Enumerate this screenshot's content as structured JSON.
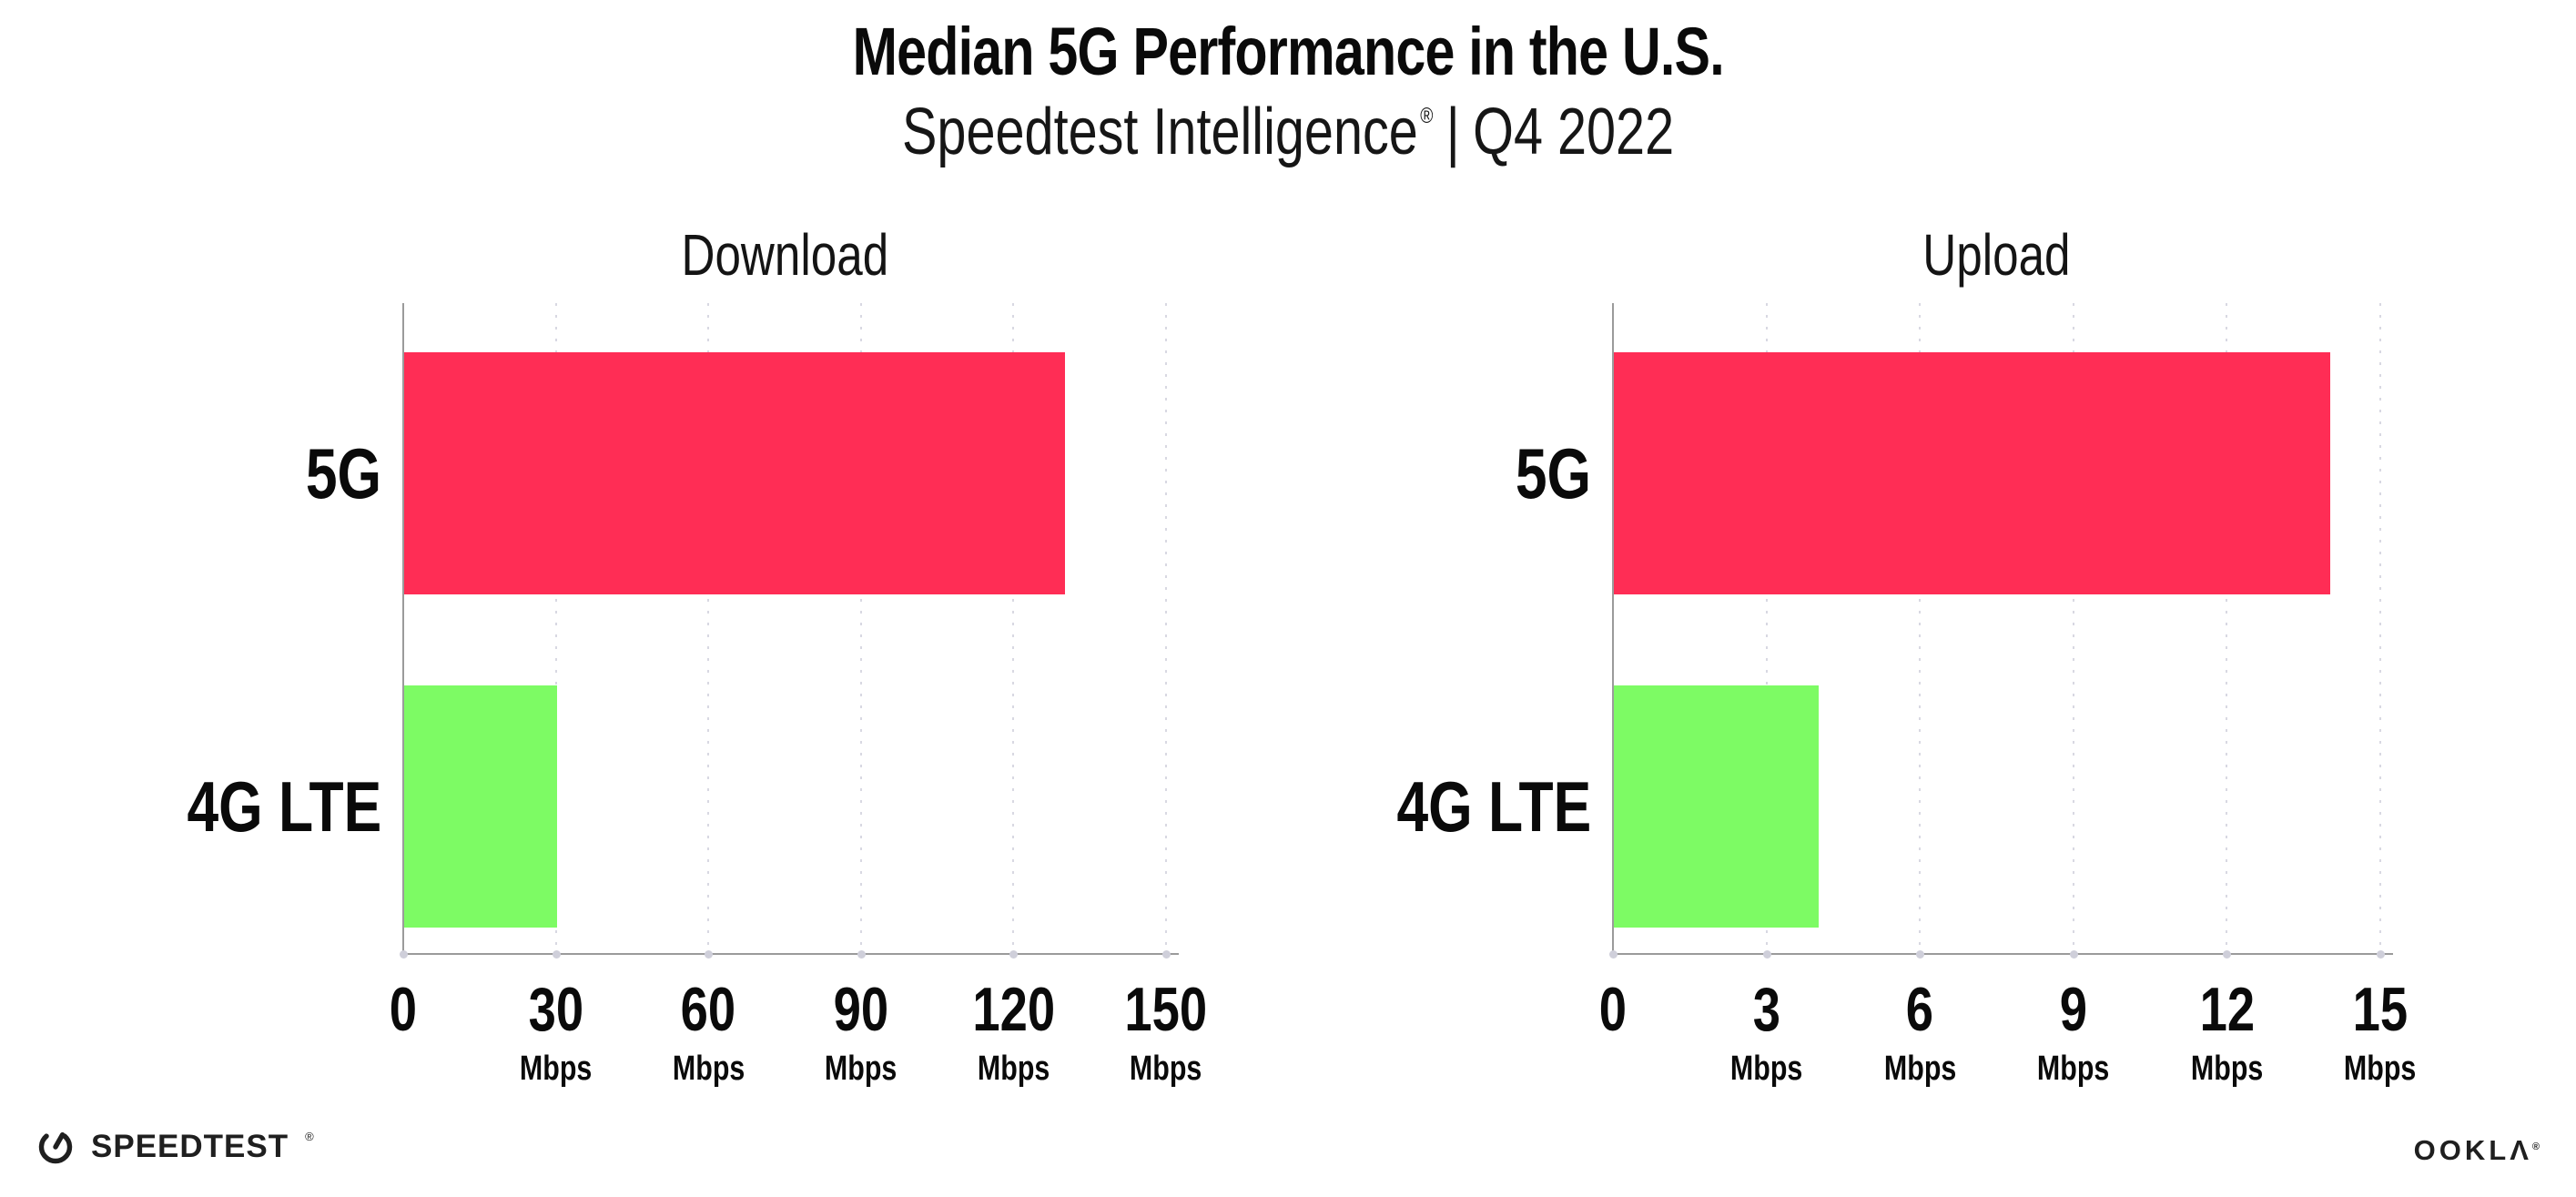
{
  "figure": {
    "title": "Median 5G Performance in the U.S.",
    "subtitle": {
      "product": "Speedtest Intelligence",
      "registered_mark": "®",
      "separator": "|",
      "period": "Q4 2022"
    }
  },
  "footer": {
    "speedtest_wordmark": "SPEEDTEST",
    "speedtest_mark": "®",
    "speedtest_icon": "gauge-icon",
    "ookla_wordmark": "OOKLA",
    "ookla_mark": "®"
  },
  "colors": {
    "bar_5g": "#FF2D55",
    "bar_4g_lte": "#7DFB64",
    "axis": "#9B9B9B",
    "gridline_dots": "#D8D8E2",
    "text": "#0A0A0A"
  },
  "chart_data": [
    {
      "type": "bar",
      "orientation": "horizontal",
      "title": "Download",
      "categories": [
        "5G",
        "4G LTE"
      ],
      "values": [
        130,
        30
      ],
      "unit": "Mbps",
      "xlim": [
        0,
        150
      ],
      "xticks": [
        0,
        30,
        60,
        90,
        120,
        150
      ],
      "xtick_unit": "Mbps",
      "grid": "dotted vertical gridlines at each tick",
      "legend": "none",
      "bar_colors": [
        "#FF2D55",
        "#7DFB64"
      ]
    },
    {
      "type": "bar",
      "orientation": "horizontal",
      "title": "Upload",
      "categories": [
        "5G",
        "4G LTE"
      ],
      "values": [
        14,
        4
      ],
      "unit": "Mbps",
      "xlim": [
        0,
        15
      ],
      "xticks": [
        0,
        3,
        6,
        9,
        12,
        15
      ],
      "xtick_unit": "Mbps",
      "grid": "dotted vertical gridlines at each tick",
      "legend": "none",
      "bar_colors": [
        "#FF2D55",
        "#7DFB64"
      ]
    }
  ]
}
